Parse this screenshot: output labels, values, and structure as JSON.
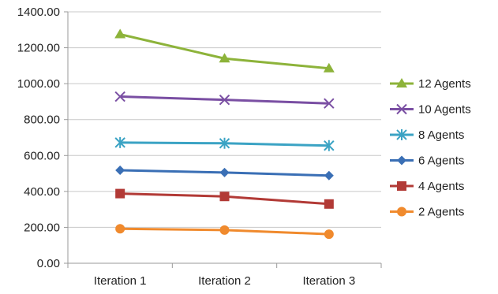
{
  "chart_data": {
    "type": "line",
    "categories": [
      "Iteration 1",
      "Iteration 2",
      "Iteration 3"
    ],
    "ylim": [
      0,
      1400
    ],
    "yticks": [
      "0.00",
      "200.00",
      "400.00",
      "600.00",
      "800.00",
      "1000.00",
      "1200.00",
      "1400.00"
    ],
    "grid": true,
    "legend_position": "right",
    "series": [
      {
        "name": "12 Agents",
        "values": [
          1275,
          1140,
          1085
        ],
        "color": "#8db33a",
        "marker": "triangle"
      },
      {
        "name": "10 Agents",
        "values": [
          928,
          910,
          890
        ],
        "color": "#7a4fa3",
        "marker": "x"
      },
      {
        "name": "8 Agents",
        "values": [
          672,
          668,
          655
        ],
        "color": "#3ba3c4",
        "marker": "asterisk"
      },
      {
        "name": "6 Agents",
        "values": [
          518,
          505,
          488
        ],
        "color": "#3a6fb5",
        "marker": "diamond"
      },
      {
        "name": "4 Agents",
        "values": [
          388,
          372,
          330
        ],
        "color": "#b23a36",
        "marker": "square"
      },
      {
        "name": "2 Agents",
        "values": [
          192,
          185,
          162
        ],
        "color": "#f08a2d",
        "marker": "circle"
      }
    ]
  }
}
